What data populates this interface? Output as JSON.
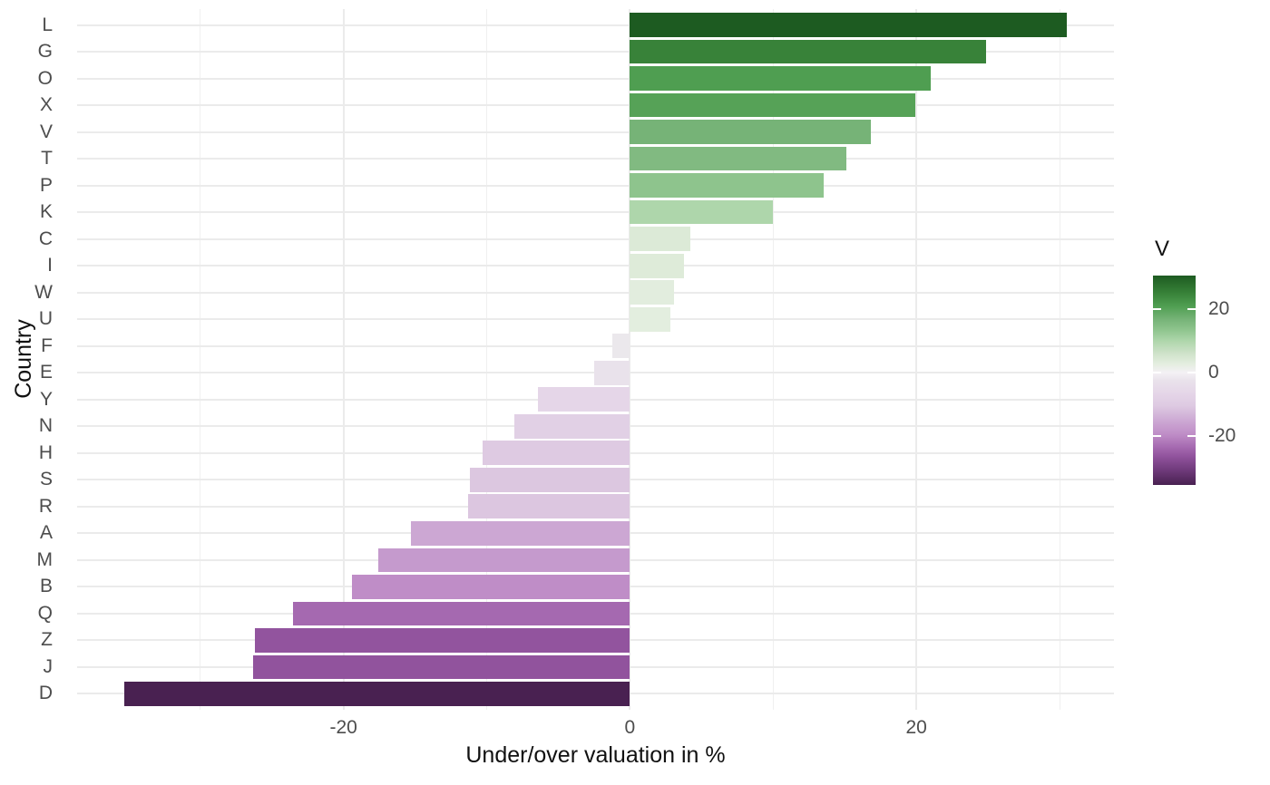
{
  "chart_data": {
    "type": "bar",
    "orientation": "horizontal",
    "title": "",
    "xlabel": "Under/over valuation in %",
    "ylabel": "Country",
    "categories": [
      "L",
      "G",
      "O",
      "X",
      "V",
      "T",
      "P",
      "K",
      "C",
      "I",
      "W",
      "U",
      "F",
      "E",
      "Y",
      "N",
      "H",
      "S",
      "R",
      "A",
      "M",
      "B",
      "Q",
      "Z",
      "J",
      "D"
    ],
    "values": [
      30.5,
      24.9,
      21.0,
      19.9,
      16.8,
      15.1,
      13.5,
      10.0,
      4.2,
      3.8,
      3.1,
      2.8,
      -1.2,
      -2.5,
      -6.4,
      -8.1,
      -10.3,
      -11.2,
      -11.3,
      -15.3,
      -17.6,
      -19.4,
      -23.5,
      -26.2,
      -26.3,
      -35.3
    ],
    "bar_colors": [
      "#1d5b21",
      "#388239",
      "#4f9e51",
      "#56a257",
      "#76b377",
      "#81ba81",
      "#8ec48d",
      "#aed6ab",
      "#dcead7",
      "#deebd9",
      "#e2edde",
      "#e3eedf",
      "#ebe8ec",
      "#e9e2eb",
      "#e5d6e8",
      "#e1d0e5",
      "#decae2",
      "#dcc7e0",
      "#dcc6e0",
      "#cca7d3",
      "#c59acd",
      "#bf8dc7",
      "#a569b0",
      "#92549e",
      "#91539d",
      "#492151"
    ],
    "xlim": [
      -38.6,
      33.8
    ],
    "x_major_ticks": [
      -20,
      0,
      20
    ],
    "x_major_tick_labels": [
      "-20",
      "0",
      "20"
    ],
    "x_minor_ticks": [
      -30,
      -10,
      10,
      30
    ],
    "grid": true,
    "legend": {
      "title": "V",
      "kind": "colorbar",
      "position": "right",
      "domain": [
        -35.3,
        30.5
      ],
      "ticks": [
        20,
        0,
        -20
      ],
      "tick_labels": [
        "20",
        "0",
        "-20"
      ],
      "colormap": [
        [
          30.5,
          "#1d5b21"
        ],
        [
          24.9,
          "#388239"
        ],
        [
          21.0,
          "#4f9e51"
        ],
        [
          16.8,
          "#76b377"
        ],
        [
          13.5,
          "#8ec48d"
        ],
        [
          10.0,
          "#aed6ab"
        ],
        [
          6.0,
          "#cfe2ca"
        ],
        [
          3.0,
          "#e2edde"
        ],
        [
          0.0,
          "#f4f1f5"
        ],
        [
          -2.5,
          "#e9e2eb"
        ],
        [
          -6.4,
          "#e5d6e8"
        ],
        [
          -10.3,
          "#decae2"
        ],
        [
          -15.3,
          "#cca7d3"
        ],
        [
          -19.4,
          "#bf8dc7"
        ],
        [
          -23.5,
          "#a569b0"
        ],
        [
          -26.3,
          "#91539d"
        ],
        [
          -30.5,
          "#703b7c"
        ],
        [
          -35.3,
          "#492151"
        ]
      ]
    }
  },
  "colors": {
    "background": "#ffffff",
    "grid_major": "#ebebeb",
    "grid_minor": "#f0f0f0",
    "axis_text": "#4d4d4d",
    "axis_title": "#111111"
  }
}
